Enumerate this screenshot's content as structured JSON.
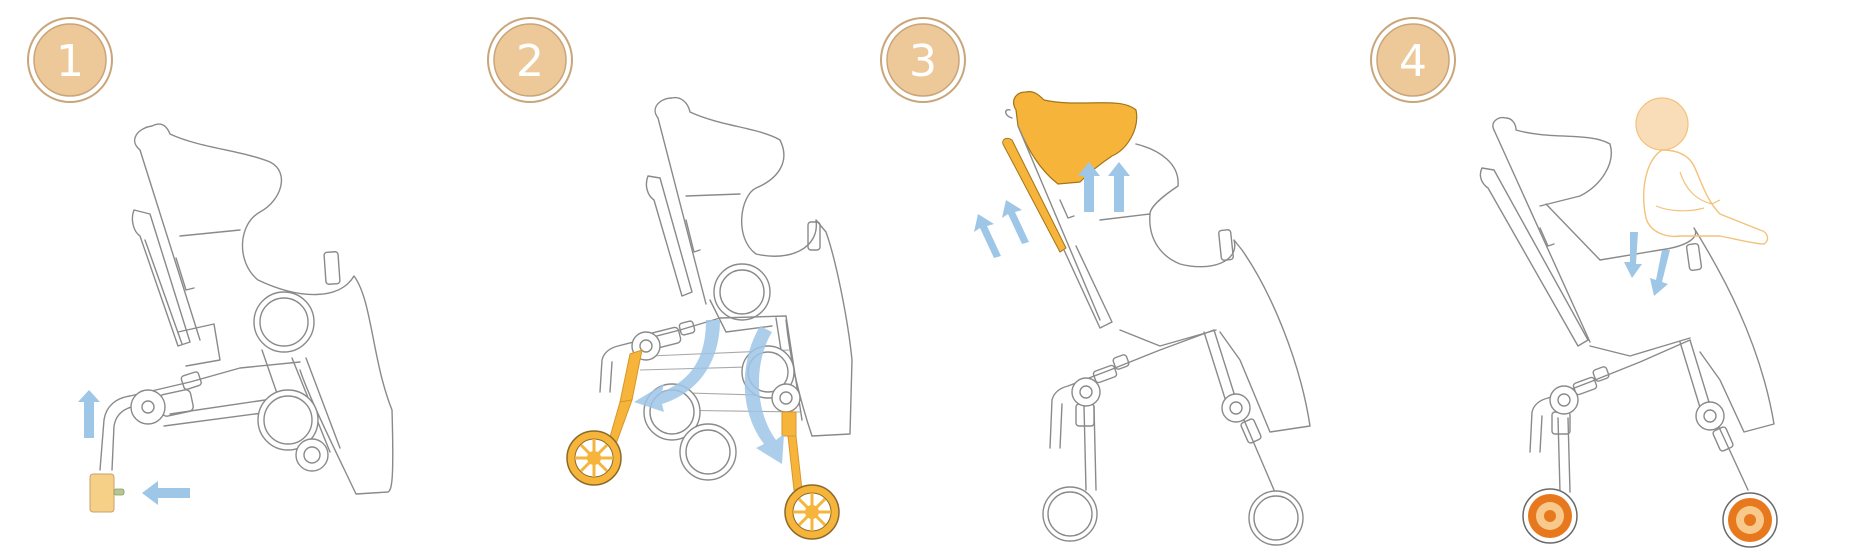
{
  "steps": [
    {
      "number": "1"
    },
    {
      "number": "2"
    },
    {
      "number": "3"
    },
    {
      "number": "4"
    }
  ],
  "colors": {
    "badge_fill": "#edc999",
    "badge_ring": "#c9a57a",
    "accent_yellow": "#f6b53a",
    "accent_orange": "#e8781e",
    "arrow_blue": "#9ec6e6",
    "line_grey": "#8a8a8a",
    "baby_outline": "#f3c27a"
  },
  "icons": [
    "step-badge",
    "stroller-frame",
    "wheel",
    "up-arrow",
    "left-arrow",
    "rotate-arrow",
    "canopy",
    "baby-figure"
  ]
}
